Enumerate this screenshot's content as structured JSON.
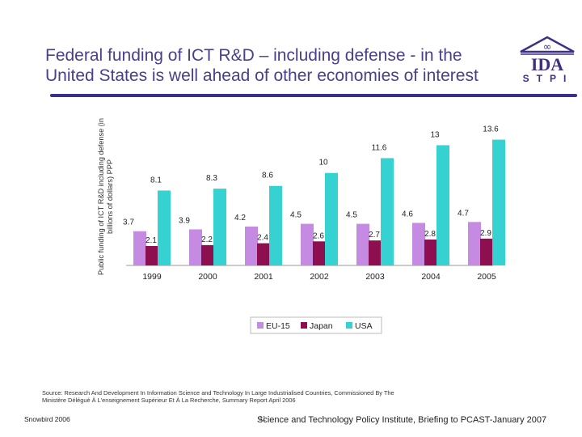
{
  "slide": {
    "title_line1": "Federal funding of ICT R&D – including defense - in the",
    "title_line2": "United States is well ahead of other economies of interest",
    "logo_main": "IDA",
    "logo_sub": "STPI",
    "source_line1": "Source: Research And Development In Information Science and Technology In Large Industrialised Countries, Commissioned By The",
    "source_line2": "Ministère Délégué À L'enseignement Supérieur Et À La Recherche, Summary Report April 2006",
    "footer_left": "Snowbird 2006",
    "footer_page": "31",
    "footer_center": "Science and Technology Policy Institute, Briefing to PCAST-January 2007"
  },
  "colors": {
    "title": "#4a3f8c",
    "rule": "#3d2f86",
    "eu15": "#c58be3",
    "japan": "#8e0f4f",
    "usa": "#36d1d1"
  },
  "chart_data": {
    "type": "bar",
    "categories": [
      "1999",
      "2000",
      "2001",
      "2002",
      "2003",
      "2004",
      "2005"
    ],
    "series": [
      {
        "name": "EU-15",
        "values": [
          3.7,
          3.9,
          4.2,
          4.5,
          4.5,
          4.6,
          4.7
        ]
      },
      {
        "name": "Japan",
        "values": [
          2.1,
          2.2,
          2.4,
          2.6,
          2.7,
          2.8,
          2.9
        ]
      },
      {
        "name": "USA",
        "values": [
          8.1,
          8.3,
          8.6,
          10,
          11.6,
          13,
          13.6
        ]
      }
    ],
    "ylabel_line1": "Public funding of ICT R&D including defense (in",
    "ylabel_line2": "billions of dollars) PPP",
    "ylim": [
      0,
      14
    ],
    "grid": false,
    "legend_position": "bottom"
  }
}
